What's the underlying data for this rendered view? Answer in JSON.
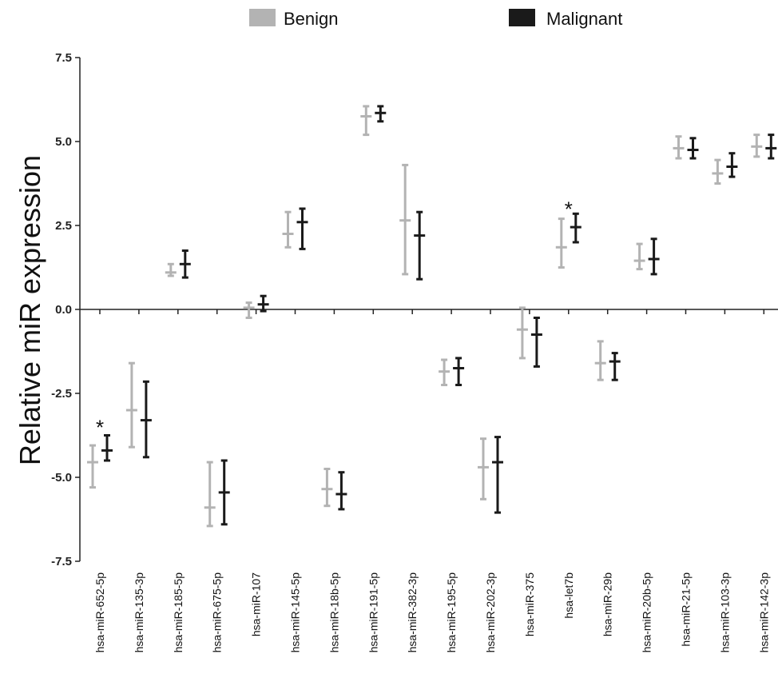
{
  "chart_data": {
    "type": "scatter",
    "ylabel": "Relative miR expression",
    "ylim": [
      -7.5,
      7.5
    ],
    "yticks": [
      -7.5,
      -5.0,
      -2.5,
      0.0,
      2.5,
      5.0,
      7.5
    ],
    "ytick_labels": [
      "-7.5",
      "-5.0",
      "-2.5",
      "0.0",
      "2.5",
      "5.0",
      "7.5"
    ],
    "legend_position": "top",
    "categories": [
      "hsa-miR-652-5p",
      "hsa-miR-135-3p",
      "hsa-miR-185-5p",
      "hsa-miR-675-5p",
      "hsa-miR-107",
      "hsa-miR-145-5p",
      "hsa-miR-18b-5p",
      "hsa-miR-191-5p",
      "hsa-miR-382-3p",
      "hsa-miR-195-5p",
      "hsa-miR-202-3p",
      "hsa-miR-375",
      "hsa-let7b",
      "hsa-miR-29b",
      "hsa-miR-20b-5p",
      "hsa-miR-21-5p",
      "hsa-miR-103-3p",
      "hsa-miR-142-3p"
    ],
    "series": [
      {
        "name": "Benign",
        "color": "#b3b3b3",
        "mean": [
          -4.55,
          -3.0,
          1.1,
          -5.9,
          0.05,
          2.25,
          -5.35,
          5.75,
          2.65,
          -1.85,
          -4.7,
          -0.6,
          1.85,
          -1.6,
          1.45,
          4.8,
          4.05,
          4.85
        ],
        "low": [
          -5.3,
          -4.1,
          1.0,
          -6.45,
          -0.25,
          1.85,
          -5.85,
          5.2,
          1.05,
          -2.25,
          -5.65,
          -1.45,
          1.25,
          -2.1,
          1.2,
          4.5,
          3.75,
          4.55
        ],
        "high": [
          -4.05,
          -1.6,
          1.35,
          -4.55,
          0.2,
          2.9,
          -4.75,
          6.05,
          4.3,
          -1.5,
          -3.85,
          0.05,
          2.7,
          -0.95,
          1.95,
          5.15,
          4.45,
          5.2
        ]
      },
      {
        "name": "Malignant",
        "color": "#1a1a1a",
        "mean": [
          -4.2,
          -3.3,
          1.35,
          -5.45,
          0.15,
          2.6,
          -5.5,
          5.85,
          2.2,
          -1.75,
          -4.55,
          -0.75,
          2.45,
          -1.55,
          1.5,
          4.75,
          4.25,
          4.8
        ],
        "low": [
          -4.5,
          -4.4,
          0.95,
          -6.4,
          -0.05,
          1.8,
          -5.95,
          5.6,
          0.9,
          -2.25,
          -6.05,
          -1.7,
          2.0,
          -2.1,
          1.05,
          4.5,
          3.95,
          4.5
        ],
        "high": [
          -3.75,
          -2.15,
          1.75,
          -4.5,
          0.4,
          3.0,
          -4.85,
          6.05,
          2.9,
          -1.45,
          -3.8,
          -0.25,
          2.85,
          -1.3,
          2.1,
          5.1,
          4.65,
          5.2
        ]
      }
    ],
    "annotations": [
      {
        "text": "*",
        "category": "hsa-miR-652-5p",
        "y": -3.3
      },
      {
        "text": "*",
        "category": "hsa-let7b",
        "y": 3.2
      }
    ]
  }
}
